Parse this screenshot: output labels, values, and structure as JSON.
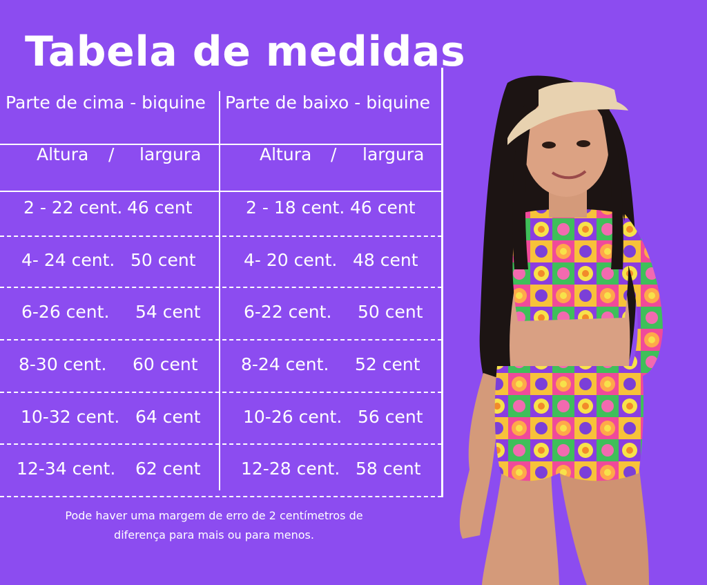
{
  "title": "Tabela de medidas",
  "headers": {
    "top": "Parte de cima -  biquine",
    "bottom": "Parte de baixo -  biquine"
  },
  "subheaders": {
    "altura": "Altura",
    "slash": "/",
    "largura": "largura"
  },
  "rows": [
    {
      "top_altura": "2 - 22 cent.",
      "top_largura": "46 cent",
      "bottom_altura": "2 - 18 cent.",
      "bottom_largura": "46 cent"
    },
    {
      "top_altura": "4- 24 cent.",
      "top_largura": "50 cent",
      "bottom_altura": "4- 20 cent.",
      "bottom_largura": "48 cent"
    },
    {
      "top_altura": "6-26 cent.",
      "top_largura": "54 cent",
      "bottom_altura": "6-22 cent.",
      "bottom_largura": "50 cent"
    },
    {
      "top_altura": "8-30 cent.",
      "top_largura": "60 cent",
      "bottom_altura": "8-24 cent.",
      "bottom_largura": "52 cent"
    },
    {
      "top_altura": "10-32 cent.",
      "top_largura": "64 cent",
      "bottom_altura": "10-26 cent.",
      "bottom_largura": "56 cent"
    },
    {
      "top_altura": "12-34  cent.",
      "top_largura": "62 cent",
      "bottom_altura": "12-28 cent.",
      "bottom_largura": "58 cent"
    }
  ],
  "note": {
    "line1": "Pode haver uma margem de erro de 2 centímetros de",
    "line2": "diferença para mais ou para menos."
  },
  "colors": {
    "background": "#8c4cf0",
    "text": "#ffffff"
  }
}
